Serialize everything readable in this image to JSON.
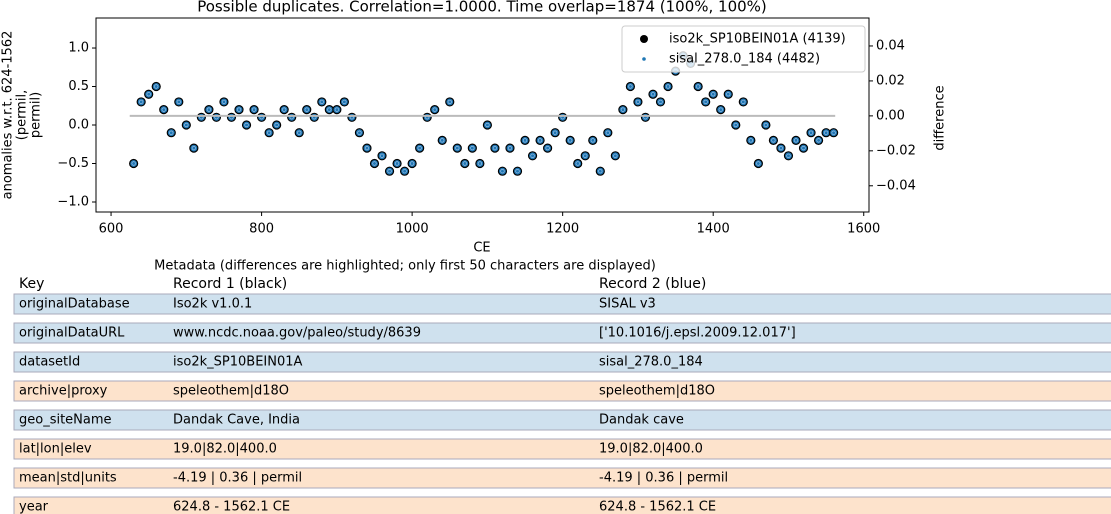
{
  "chart_data": {
    "type": "scatter",
    "title": "Possible duplicates. Correlation=1.0000. Time overlap=1874 (100%, 100%)",
    "xlabel": "CE",
    "ylabel_lines": [
      "anomalies w.r.t. 624-1562",
      "(permil,",
      "permil)"
    ],
    "y2label": "difference",
    "x": [
      630,
      640,
      650,
      660,
      670,
      680,
      690,
      700,
      710,
      720,
      730,
      740,
      750,
      760,
      770,
      780,
      790,
      800,
      810,
      820,
      830,
      840,
      850,
      860,
      870,
      880,
      890,
      900,
      910,
      920,
      930,
      940,
      950,
      960,
      970,
      980,
      990,
      1000,
      1010,
      1020,
      1030,
      1040,
      1050,
      1060,
      1070,
      1080,
      1090,
      1100,
      1110,
      1120,
      1130,
      1140,
      1150,
      1160,
      1170,
      1180,
      1190,
      1200,
      1210,
      1220,
      1230,
      1240,
      1250,
      1260,
      1270,
      1280,
      1290,
      1300,
      1310,
      1320,
      1330,
      1340,
      1350,
      1360,
      1370,
      1380,
      1390,
      1400,
      1410,
      1420,
      1430,
      1440,
      1450,
      1460,
      1470,
      1480,
      1490,
      1500,
      1510,
      1520,
      1530,
      1540,
      1550,
      1560
    ],
    "series": [
      {
        "name": "iso2k_SP10BEIN01A (4139)",
        "color": "#1f77b4",
        "edge": "#000000",
        "marker": "big",
        "values": [
          -0.5,
          0.3,
          0.4,
          0.5,
          0.2,
          -0.1,
          0.3,
          0.0,
          -0.3,
          0.1,
          0.2,
          0.1,
          0.3,
          0.1,
          0.2,
          0.0,
          0.2,
          0.1,
          -0.1,
          0.0,
          0.2,
          0.1,
          -0.1,
          0.2,
          0.1,
          0.3,
          0.2,
          0.2,
          0.3,
          0.1,
          -0.1,
          -0.3,
          -0.5,
          -0.4,
          -0.6,
          -0.5,
          -0.6,
          -0.5,
          -0.3,
          0.1,
          0.2,
          -0.2,
          0.3,
          -0.3,
          -0.5,
          -0.3,
          -0.5,
          0.0,
          -0.3,
          -0.6,
          -0.3,
          -0.6,
          -0.2,
          -0.4,
          -0.2,
          -0.3,
          -0.1,
          0.1,
          -0.2,
          -0.5,
          -0.4,
          -0.2,
          -0.6,
          -0.1,
          -0.4,
          0.2,
          0.5,
          0.3,
          0.1,
          0.4,
          0.3,
          0.5,
          0.7,
          0.9,
          0.8,
          0.5,
          0.3,
          0.4,
          0.2,
          0.4,
          0.0,
          0.3,
          -0.2,
          -0.5,
          0.0,
          -0.2,
          -0.3,
          -0.4,
          -0.2,
          -0.3,
          -0.1,
          -0.2,
          -0.1,
          -0.1
        ]
      },
      {
        "name": "sisal_278.0_184 (4482)",
        "color": "#1f77b4",
        "edge": "#aec7e8",
        "marker": "small",
        "values": [
          -0.5,
          0.3,
          0.4,
          0.5,
          0.2,
          -0.1,
          0.3,
          0.0,
          -0.3,
          0.1,
          0.2,
          0.1,
          0.3,
          0.1,
          0.2,
          0.0,
          0.2,
          0.1,
          -0.1,
          0.0,
          0.2,
          0.1,
          -0.1,
          0.2,
          0.1,
          0.3,
          0.2,
          0.2,
          0.3,
          0.1,
          -0.1,
          -0.3,
          -0.5,
          -0.4,
          -0.6,
          -0.5,
          -0.6,
          -0.5,
          -0.3,
          0.1,
          0.2,
          -0.2,
          0.3,
          -0.3,
          -0.5,
          -0.3,
          -0.5,
          0.0,
          -0.3,
          -0.6,
          -0.3,
          -0.6,
          -0.2,
          -0.4,
          -0.2,
          -0.3,
          -0.1,
          0.1,
          -0.2,
          -0.5,
          -0.4,
          -0.2,
          -0.6,
          -0.1,
          -0.4,
          0.2,
          0.5,
          0.3,
          0.1,
          0.4,
          0.3,
          0.5,
          0.7,
          0.9,
          0.8,
          0.5,
          0.3,
          0.4,
          0.2,
          0.4,
          0.0,
          0.3,
          -0.2,
          -0.5,
          0.0,
          -0.2,
          -0.3,
          -0.4,
          -0.2,
          -0.3,
          -0.1,
          -0.2,
          -0.1,
          -0.1
        ]
      },
      {
        "axis": "y2",
        "color": "#bbbbbb",
        "marker": "line",
        "x": [
          624.8,
          1562.1
        ],
        "values": [
          0,
          0
        ]
      }
    ],
    "xlim": [
      580,
      1607
    ],
    "xticks": [
      600,
      800,
      1000,
      1200,
      1400,
      1600
    ],
    "ylim": [
      -1.13,
      1.39
    ],
    "yticks": [
      {
        "value": -1,
        "label": "−1.0"
      },
      {
        "value": -0.5,
        "label": "−0.5"
      },
      {
        "value": 0,
        "label": "0.0"
      },
      0.5,
      {
        "value": 1,
        "label": "1.0"
      }
    ],
    "y2lim": [
      -0.055,
      0.056
    ],
    "y2ticks": [
      {
        "value": -0.04,
        "label": "−0.04"
      },
      {
        "value": -0.02,
        "label": "−0.02"
      },
      {
        "value": 0,
        "label": "0.00"
      },
      0.02,
      0.04
    ],
    "legend": "upper right"
  },
  "table": {
    "title": "Metadata (differences are highlighted; only first 50 characters are displayed)",
    "header": [
      "Key",
      "Record 1 (black)",
      "Record 2 (blue)"
    ],
    "highlight_color": "#cfe1ee",
    "same_color": "#fde3cc",
    "rows": [
      {
        "cells": [
          "originalDatabase",
          "Iso2k v1.0.1",
          "SISAL v3"
        ],
        "highlight": true
      },
      {
        "cells": [
          "originalDataURL",
          "www.ncdc.noaa.gov/paleo/study/8639",
          "['10.1016/j.epsl.2009.12.017']"
        ],
        "highlight": true
      },
      {
        "cells": [
          "datasetId",
          "iso2k_SP10BEIN01A",
          "sisal_278.0_184"
        ],
        "highlight": true
      },
      {
        "cells": [
          "archive|proxy",
          "speleothem|d18O",
          "speleothem|d18O"
        ],
        "highlight": false
      },
      {
        "cells": [
          "geo_siteName",
          "Dandak Cave, India",
          "Dandak cave"
        ],
        "highlight": true
      },
      {
        "cells": [
          "lat|lon|elev",
          "19.0|82.0|400.0",
          "19.0|82.0|400.0"
        ],
        "highlight": false
      },
      {
        "cells": [
          "mean|std|units",
          "-4.19 | 0.36 | permil",
          "-4.19 | 0.36 | permil"
        ],
        "highlight": false
      },
      {
        "cells": [
          "year",
          "624.8 - 1562.1 CE",
          "624.8 - 1562.1 CE"
        ],
        "highlight": false
      }
    ]
  }
}
